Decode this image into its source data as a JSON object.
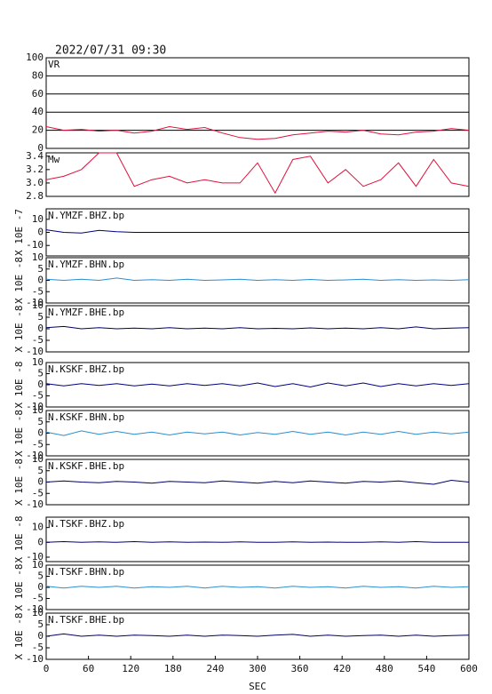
{
  "chart_data": [
    {
      "type": "line",
      "title": "2022/07/31 09:30",
      "label": "VR",
      "color": "#e0103c",
      "grid": true,
      "xlim": [
        0,
        600
      ],
      "x": [
        0,
        25,
        50,
        75,
        100,
        125,
        150,
        175,
        200,
        225,
        250,
        275,
        300,
        325,
        350,
        375,
        400,
        425,
        450,
        475,
        500,
        525,
        550,
        575,
        600
      ],
      "values": [
        24,
        20,
        21,
        19,
        20,
        17,
        19,
        24,
        21,
        23,
        17,
        12,
        10,
        11,
        15,
        17,
        19,
        18,
        20,
        16,
        15,
        18,
        19,
        22,
        20
      ],
      "ylim": [
        0,
        100
      ],
      "yticks": [
        0,
        20,
        40,
        60,
        80,
        100
      ]
    },
    {
      "type": "line",
      "label": "Mw",
      "color": "#e0103c",
      "grid": false,
      "xlim": [
        0,
        600
      ],
      "x": [
        0,
        25,
        50,
        75,
        100,
        125,
        150,
        175,
        200,
        225,
        250,
        275,
        300,
        325,
        350,
        375,
        400,
        425,
        450,
        475,
        500,
        525,
        550,
        575,
        600
      ],
      "values": [
        3.05,
        3.1,
        3.2,
        3.45,
        3.45,
        2.95,
        3.05,
        3.1,
        3.0,
        3.05,
        3.0,
        3.0,
        3.3,
        2.85,
        3.35,
        3.4,
        3.0,
        3.2,
        2.95,
        3.05,
        3.3,
        2.95,
        3.35,
        3.0,
        2.95
      ],
      "ylim": [
        2.8,
        3.45
      ],
      "yticks": [
        2.8,
        {
          "value": 3,
          "label": "3.0"
        },
        3.2,
        3.4
      ]
    },
    {
      "type": "line",
      "label": "N.YMZF.BHZ.bp",
      "ylabel": "X 10E -7",
      "color": "#000080",
      "grid": false,
      "xlim": [
        0,
        600
      ],
      "x": [
        0,
        25,
        50,
        75,
        100,
        125,
        150,
        175,
        200,
        225,
        250,
        275,
        300,
        325,
        350,
        375,
        400,
        425,
        450,
        475,
        500,
        525,
        550,
        575,
        600
      ],
      "values": [
        2,
        0,
        -0.5,
        1.5,
        0.5,
        0,
        0,
        0,
        0,
        0,
        0,
        0,
        0,
        0,
        0,
        0,
        0,
        0,
        0,
        0,
        0,
        0,
        0,
        0,
        0
      ],
      "ylim": [
        -18,
        18
      ],
      "yticks": [
        -10,
        0,
        10
      ]
    },
    {
      "type": "line",
      "label": "N.YMZF.BHN.bp",
      "ylabel": "X 10E -8",
      "color": "#2a8fd0",
      "grid": false,
      "xlim": [
        0,
        600
      ],
      "x": [
        0,
        25,
        50,
        75,
        100,
        125,
        150,
        175,
        200,
        225,
        250,
        275,
        300,
        325,
        350,
        375,
        400,
        425,
        450,
        475,
        500,
        525,
        550,
        575,
        600
      ],
      "values": [
        0.5,
        0,
        0.5,
        0,
        1,
        0,
        0.3,
        0,
        0.5,
        0,
        0.2,
        0.5,
        0,
        0.3,
        0,
        0.4,
        0,
        0.2,
        0.5,
        0,
        0.3,
        0,
        0.2,
        0,
        0.3
      ],
      "ylim": [
        -10,
        10
      ],
      "yticks": [
        -10,
        -5,
        0,
        5,
        10
      ]
    },
    {
      "type": "line",
      "label": "N.YMZF.BHE.bp",
      "ylabel": "X 10E -8",
      "color": "#000066",
      "grid": false,
      "xlim": [
        0,
        600
      ],
      "x": [
        0,
        25,
        50,
        75,
        100,
        125,
        150,
        175,
        200,
        225,
        250,
        275,
        300,
        325,
        350,
        375,
        400,
        425,
        450,
        475,
        500,
        525,
        550,
        575,
        600
      ],
      "values": [
        0.5,
        1,
        0,
        0.5,
        0,
        0.3,
        0,
        0.5,
        0,
        0.3,
        0,
        0.5,
        0,
        0.2,
        0,
        0.4,
        0,
        0.3,
        0,
        0.5,
        0,
        0.8,
        0,
        0.3,
        0.5
      ],
      "ylim": [
        -10,
        10
      ],
      "yticks": [
        -10,
        -5,
        0,
        5,
        10
      ]
    },
    {
      "type": "line",
      "label": "N.KSKF.BHZ.bp",
      "ylabel": "X 10E -8",
      "color": "#000080",
      "grid": false,
      "xlim": [
        0,
        600
      ],
      "x": [
        0,
        25,
        50,
        75,
        100,
        125,
        150,
        175,
        200,
        225,
        250,
        275,
        300,
        325,
        350,
        375,
        400,
        425,
        450,
        475,
        500,
        525,
        550,
        575,
        600
      ],
      "values": [
        0.5,
        -0.5,
        0.5,
        -0.3,
        0.5,
        -0.5,
        0.3,
        -0.5,
        0.5,
        -0.3,
        0.5,
        -0.5,
        0.8,
        -0.8,
        0.5,
        -1,
        0.8,
        -0.5,
        0.8,
        -0.8,
        0.5,
        -0.5,
        0.5,
        -0.3,
        0.5
      ],
      "ylim": [
        -10,
        10
      ],
      "yticks": [
        -10,
        -5,
        0,
        5,
        10
      ]
    },
    {
      "type": "line",
      "label": "N.KSKF.BHN.bp",
      "ylabel": "X 10E -8",
      "color": "#2a8fd0",
      "grid": false,
      "xlim": [
        0,
        600
      ],
      "x": [
        0,
        25,
        50,
        75,
        100,
        125,
        150,
        175,
        200,
        225,
        250,
        275,
        300,
        325,
        350,
        375,
        400,
        425,
        450,
        475,
        500,
        525,
        550,
        575,
        600
      ],
      "values": [
        0.5,
        -1,
        1,
        -0.5,
        0.8,
        -0.5,
        0.5,
        -0.8,
        0.5,
        -0.3,
        0.5,
        -0.8,
        0.3,
        -0.5,
        0.8,
        -0.5,
        0.5,
        -0.8,
        0.5,
        -0.5,
        0.8,
        -0.5,
        0.5,
        -0.3,
        0.5
      ],
      "ylim": [
        -10,
        10
      ],
      "yticks": [
        -10,
        -5,
        0,
        5,
        10
      ]
    },
    {
      "type": "line",
      "label": "N.KSKF.BHE.bp",
      "ylabel": "X 10E -8",
      "color": "#000066",
      "grid": false,
      "xlim": [
        0,
        600
      ],
      "x": [
        0,
        25,
        50,
        75,
        100,
        125,
        150,
        175,
        200,
        225,
        250,
        275,
        300,
        325,
        350,
        375,
        400,
        425,
        450,
        475,
        500,
        525,
        550,
        575,
        600
      ],
      "values": [
        0,
        0.5,
        0,
        -0.3,
        0.3,
        0,
        -0.5,
        0.3,
        0,
        -0.3,
        0.5,
        0,
        -0.5,
        0.3,
        -0.3,
        0.5,
        0,
        -0.5,
        0.3,
        0,
        0.5,
        -0.3,
        -1,
        0.8,
        0
      ],
      "ylim": [
        -10,
        10
      ],
      "yticks": [
        -10,
        -5,
        0,
        5,
        10
      ]
    },
    {
      "type": "line",
      "label": "N.TSKF.BHZ.bp",
      "ylabel": "X 10E -8",
      "color": "#000080",
      "grid": false,
      "xlim": [
        0,
        600
      ],
      "x": [
        0,
        25,
        50,
        75,
        100,
        125,
        150,
        175,
        200,
        225,
        250,
        275,
        300,
        325,
        350,
        375,
        400,
        425,
        450,
        475,
        500,
        525,
        550,
        575,
        600
      ],
      "values": [
        0,
        0.5,
        0,
        0.3,
        0,
        0.5,
        0,
        0.3,
        0,
        0.2,
        0,
        0.3,
        0,
        0,
        0.3,
        0,
        0.2,
        0,
        0,
        0.3,
        0,
        0.5,
        0,
        0,
        0
      ],
      "ylim": [
        -13,
        17
      ],
      "yticks": [
        -10,
        0,
        10
      ]
    },
    {
      "type": "line",
      "label": "N.TSKF.BHN.bp",
      "ylabel": "X 10E -8",
      "color": "#2a8fd0",
      "grid": false,
      "xlim": [
        0,
        600
      ],
      "x": [
        0,
        25,
        50,
        75,
        100,
        125,
        150,
        175,
        200,
        225,
        250,
        275,
        300,
        325,
        350,
        375,
        400,
        425,
        450,
        475,
        500,
        525,
        550,
        575,
        600
      ],
      "values": [
        0.5,
        -0.3,
        0.5,
        0,
        0.5,
        -0.3,
        0.3,
        0,
        0.5,
        -0.3,
        0.5,
        0,
        0.3,
        -0.3,
        0.5,
        0,
        0.3,
        -0.3,
        0.5,
        0,
        0.3,
        -0.3,
        0.5,
        0,
        0.3
      ],
      "ylim": [
        -10,
        10
      ],
      "yticks": [
        -10,
        -5,
        0,
        5,
        10
      ]
    },
    {
      "type": "line",
      "label": "N.TSKF.BHE.bp",
      "ylabel": "X 10E -8",
      "color": "#000066",
      "grid": false,
      "xlim": [
        0,
        600
      ],
      "x": [
        0,
        25,
        50,
        75,
        100,
        125,
        150,
        175,
        200,
        225,
        250,
        275,
        300,
        325,
        350,
        375,
        400,
        425,
        450,
        475,
        500,
        525,
        550,
        575,
        600
      ],
      "values": [
        0,
        1,
        0,
        0.5,
        0,
        0.5,
        0.3,
        0,
        0.5,
        0,
        0.5,
        0.3,
        0,
        0.5,
        0.8,
        0,
        0.5,
        0,
        0.3,
        0.5,
        0,
        0.5,
        0,
        0.3,
        0.5
      ],
      "ylim": [
        -10,
        10
      ],
      "yticks": [
        -10,
        -5,
        0,
        5,
        10
      ],
      "xticks": [
        0,
        60,
        120,
        180,
        240,
        300,
        360,
        420,
        480,
        540,
        600
      ],
      "xlabel": "SEC"
    }
  ]
}
